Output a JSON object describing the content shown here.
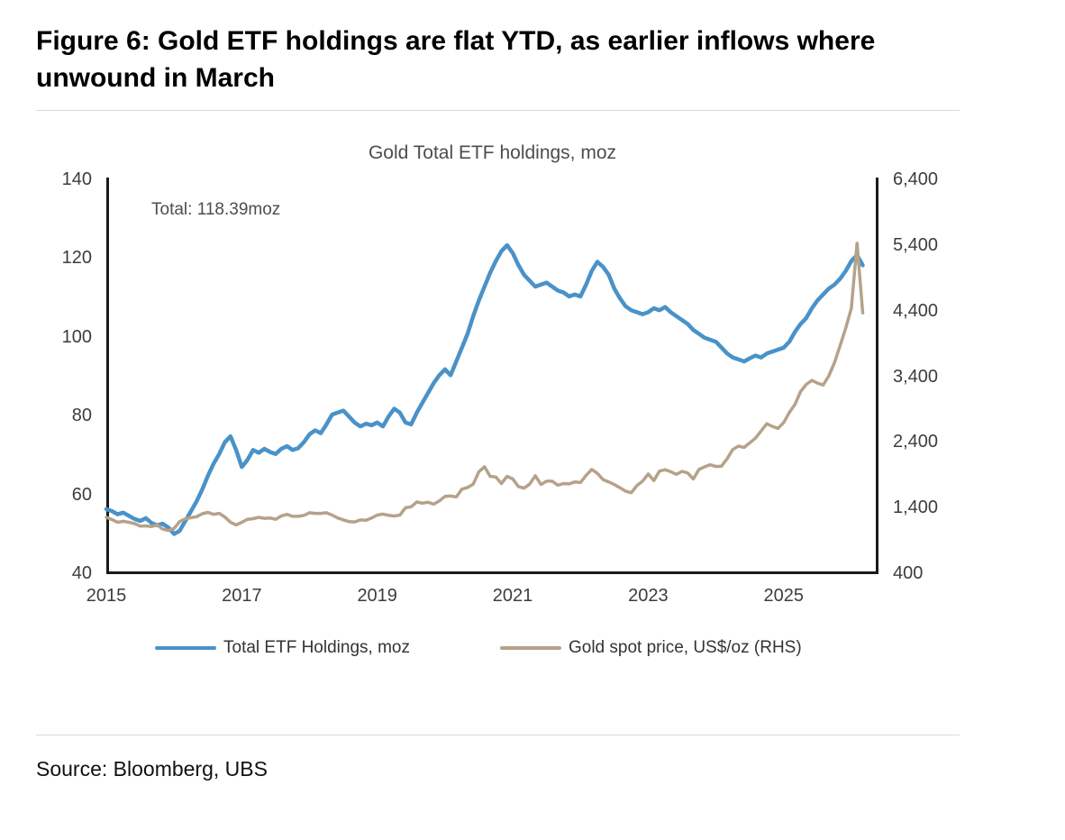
{
  "figure": {
    "title": "Figure 6: Gold ETF holdings are flat YTD, as earlier inflows where unwound in March",
    "source": "Source: Bloomberg, UBS"
  },
  "chart_data": {
    "type": "line",
    "title": "Gold Total ETF holdings, moz",
    "annotation": "Total: 118.39moz",
    "legend_position": "bottom",
    "grid": false,
    "x_start": 2015.0,
    "x_step": 0.0833333,
    "xlim": [
      2015,
      2026.4
    ],
    "x_ticks": [
      "2015",
      "2017",
      "2019",
      "2021",
      "2023",
      "2025"
    ],
    "x_tick_values": [
      2015,
      2017,
      2019,
      2021,
      2023,
      2025
    ],
    "left_axis": {
      "ylim": [
        40,
        140
      ],
      "ticks": [
        140,
        120,
        100,
        80,
        60,
        40
      ],
      "label": "Total ETF holdings, moz"
    },
    "right_axis": {
      "ylim": [
        400,
        6400
      ],
      "ticks": [
        "6,400",
        "5,400",
        "4,400",
        "3,400",
        "2,400",
        "1,400",
        "400"
      ],
      "tick_values": [
        6400,
        5400,
        4400,
        3400,
        2400,
        1400,
        400
      ],
      "label": "Gold spot price, US$/oz"
    },
    "series": [
      {
        "name": "Total ETF Holdings, moz",
        "axis": "left",
        "color": "#4a92c8",
        "width": 4.5,
        "values": [
          56.5,
          56.0,
          55.2,
          55.6,
          54.8,
          54.0,
          53.5,
          54.2,
          53.0,
          52.4,
          52.8,
          51.8,
          50.2,
          51.0,
          53.5,
          56.0,
          58.5,
          61.5,
          65.0,
          68.0,
          70.5,
          73.5,
          75.0,
          71.5,
          67.2,
          69.0,
          71.5,
          70.8,
          71.8,
          71.0,
          70.5,
          71.8,
          72.5,
          71.5,
          72.0,
          73.5,
          75.5,
          76.5,
          75.8,
          78.0,
          80.5,
          81.0,
          81.5,
          80.0,
          78.5,
          77.5,
          78.2,
          77.8,
          78.5,
          77.5,
          80.0,
          82.0,
          81.0,
          78.5,
          78.0,
          81.0,
          83.5,
          86.0,
          88.5,
          90.5,
          92.0,
          90.5,
          94.0,
          97.5,
          101.0,
          105.5,
          109.5,
          113.0,
          116.5,
          119.5,
          122.0,
          123.5,
          121.5,
          118.5,
          116.0,
          114.5,
          113.0,
          113.5,
          114.0,
          113.0,
          112.0,
          111.5,
          110.5,
          111.0,
          110.5,
          113.5,
          117.0,
          119.3,
          118.0,
          116.0,
          112.5,
          110.0,
          108.0,
          107.0,
          106.5,
          106.0,
          106.5,
          107.5,
          107.0,
          107.8,
          106.5,
          105.5,
          104.5,
          103.5,
          102.0,
          101.0,
          100.0,
          99.5,
          99.0,
          97.5,
          96.0,
          95.0,
          94.5,
          94.0,
          94.8,
          95.5,
          95.0,
          96.0,
          96.5,
          97.0,
          97.5,
          99.0,
          101.5,
          103.5,
          105.0,
          107.5,
          109.5,
          111.0,
          112.5,
          113.5,
          115.0,
          117.0,
          119.5,
          121.0,
          118.39
        ]
      },
      {
        "name": "Gold spot price, US$/oz (RHS)",
        "axis": "right",
        "color": "#b5a289",
        "width": 3.5,
        "values": [
          1265,
          1230,
          1190,
          1205,
          1190,
          1170,
          1130,
          1135,
          1125,
          1150,
          1085,
          1065,
          1095,
          1200,
          1245,
          1260,
          1275,
          1320,
          1340,
          1310,
          1325,
          1270,
          1190,
          1150,
          1190,
          1235,
          1245,
          1265,
          1250,
          1255,
          1235,
          1285,
          1310,
          1280,
          1280,
          1295,
          1335,
          1325,
          1325,
          1335,
          1300,
          1255,
          1225,
          1200,
          1195,
          1225,
          1220,
          1255,
          1300,
          1315,
          1295,
          1285,
          1300,
          1410,
          1425,
          1500,
          1480,
          1495,
          1465,
          1515,
          1585,
          1590,
          1575,
          1695,
          1720,
          1770,
          1960,
          2035,
          1890,
          1880,
          1780,
          1890,
          1850,
          1735,
          1710,
          1770,
          1900,
          1765,
          1815,
          1815,
          1755,
          1780,
          1775,
          1805,
          1795,
          1905,
          1995,
          1935,
          1840,
          1805,
          1765,
          1715,
          1665,
          1640,
          1750,
          1815,
          1925,
          1825,
          1970,
          1990,
          1960,
          1920,
          1965,
          1940,
          1850,
          1995,
          2035,
          2065,
          2040,
          2045,
          2160,
          2300,
          2350,
          2330,
          2400,
          2470,
          2580,
          2690,
          2650,
          2620,
          2710,
          2860,
          2985,
          3180,
          3290,
          3350,
          3310,
          3280,
          3420,
          3620,
          3880,
          4150,
          4450,
          5440,
          4380
        ]
      }
    ]
  }
}
